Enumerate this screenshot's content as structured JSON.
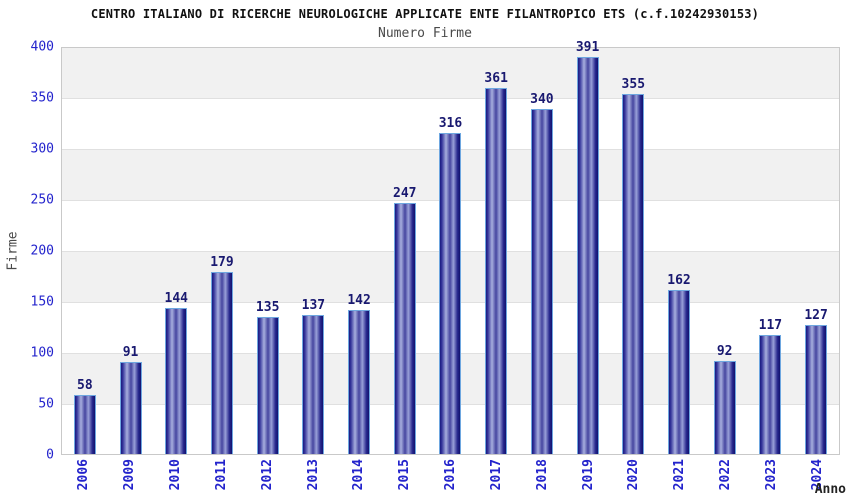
{
  "title": "CENTRO ITALIANO DI RICERCHE NEUROLOGICHE APPLICATE ENTE FILANTROPICO ETS (c.f.10242930153)",
  "subtitle": "Numero Firme",
  "chart_data": {
    "type": "bar",
    "title": "CENTRO ITALIANO DI RICERCHE NEUROLOGICHE APPLICATE ENTE FILANTROPICO ETS (c.f.10242930153)",
    "subtitle": "Numero Firme",
    "categories": [
      "2006",
      "2009",
      "2010",
      "2011",
      "2012",
      "2013",
      "2014",
      "2015",
      "2016",
      "2017",
      "2018",
      "2019",
      "2020",
      "2021",
      "2022",
      "2023",
      "2024"
    ],
    "values": [
      58,
      91,
      144,
      179,
      135,
      137,
      142,
      247,
      316,
      361,
      340,
      391,
      355,
      162,
      92,
      117,
      127
    ],
    "xlabel": "Anno",
    "ylabel": "Firme",
    "ylim": [
      0,
      400
    ],
    "ytick_step": 50,
    "grid": true,
    "legend_position": "none",
    "plot_bands": "alternating-horizontal"
  },
  "colors": {
    "title_text": "#111111",
    "subtitle_text": "#4a4a4a",
    "axis_label": "#4a4a4a",
    "xlabel_text": "#222222",
    "tick_label": "#2323cc",
    "value_label": "#191970",
    "band_gray": "#f1f1f1",
    "gridline": "#e0e0e0",
    "plot_border": "#c9c9c9",
    "bar_border": "#6ea7e0",
    "bar_dark": "#1a1a80",
    "bar_light": "#a7aede"
  }
}
